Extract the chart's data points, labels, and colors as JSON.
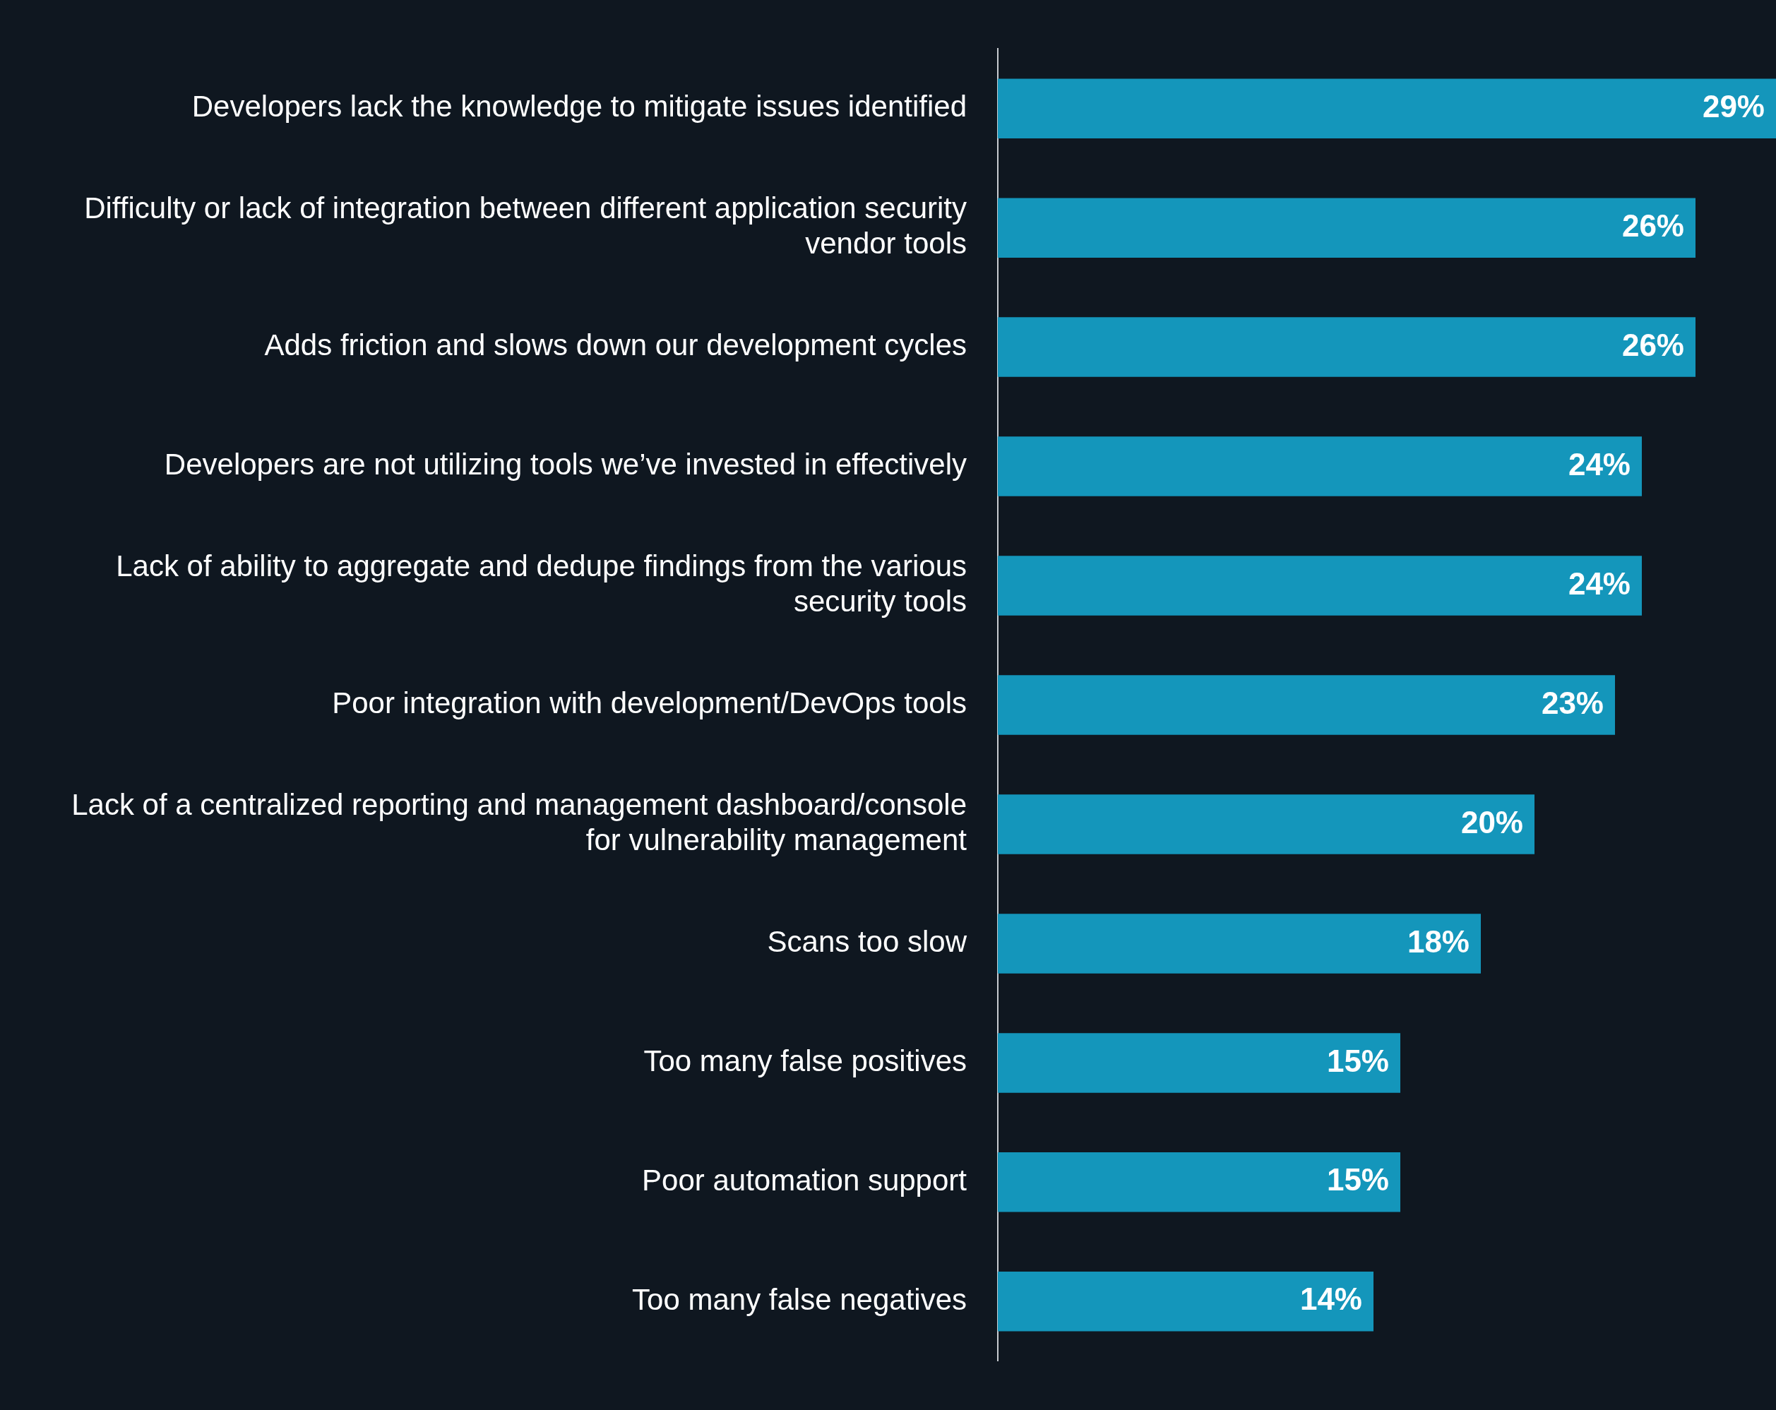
{
  "chart_data": {
    "type": "bar",
    "orientation": "horizontal",
    "categories": [
      "Developers lack the knowledge to mitigate issues identified",
      "Difficulty or lack of integration between different application security vendor tools",
      "Adds friction and slows down our development cycles",
      "Developers are not utilizing tools we’ve invested in effectively",
      "Lack of ability to aggregate and dedupe findings from the various security tools",
      "Poor integration with development/DevOps tools",
      "Lack of a centralized reporting and management dashboard/console for vulnerability management",
      "Scans too slow",
      "Too many false positives",
      "Poor automation support",
      "Too many false negatives"
    ],
    "values": [
      29,
      26,
      26,
      24,
      24,
      23,
      20,
      18,
      15,
      15,
      14
    ],
    "value_labels": [
      "29%",
      "26%",
      "26%",
      "24%",
      "24%",
      "23%",
      "20%",
      "18%",
      "15%",
      "15%",
      "14%"
    ],
    "color": "#1496bb",
    "legend": false
  }
}
